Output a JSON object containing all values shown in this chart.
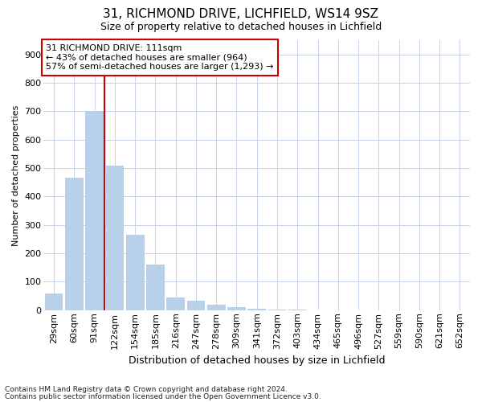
{
  "title1": "31, RICHMOND DRIVE, LICHFIELD, WS14 9SZ",
  "title2": "Size of property relative to detached houses in Lichfield",
  "xlabel": "Distribution of detached houses by size in Lichfield",
  "ylabel": "Number of detached properties",
  "categories": [
    "29sqm",
    "60sqm",
    "91sqm",
    "122sqm",
    "154sqm",
    "185sqm",
    "216sqm",
    "247sqm",
    "278sqm",
    "309sqm",
    "341sqm",
    "372sqm",
    "403sqm",
    "434sqm",
    "465sqm",
    "496sqm",
    "527sqm",
    "559sqm",
    "590sqm",
    "621sqm",
    "652sqm"
  ],
  "values": [
    60,
    465,
    700,
    510,
    265,
    160,
    45,
    32,
    18,
    12,
    5,
    2,
    1,
    0,
    0,
    0,
    0,
    0,
    0,
    0,
    0
  ],
  "bar_color": "#b8d0ea",
  "grid_color": "#c8d4e8",
  "background_color": "#ffffff",
  "fig_background": "#ffffff",
  "vline_color": "#cc0000",
  "annotation_line1": "31 RICHMOND DRIVE: 111sqm",
  "annotation_line2": "← 43% of detached houses are smaller (964)",
  "annotation_line3": "57% of semi-detached houses are larger (1,293) →",
  "annotation_box_color": "#ffffff",
  "annotation_box_edge_color": "#cc0000",
  "ylim": [
    0,
    950
  ],
  "yticks": [
    0,
    100,
    200,
    300,
    400,
    500,
    600,
    700,
    800,
    900
  ],
  "footnote1": "Contains HM Land Registry data © Crown copyright and database right 2024.",
  "footnote2": "Contains public sector information licensed under the Open Government Licence v3.0.",
  "title1_fontsize": 11,
  "title2_fontsize": 9,
  "xlabel_fontsize": 9,
  "ylabel_fontsize": 8,
  "tick_fontsize": 8,
  "annot_fontsize": 8,
  "footnote_fontsize": 6.5
}
